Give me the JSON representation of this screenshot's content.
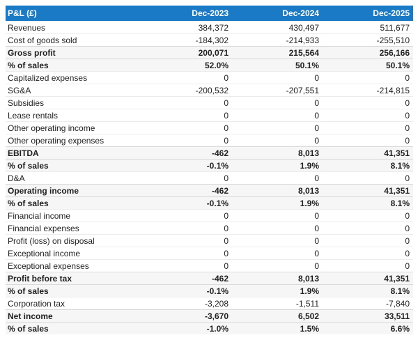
{
  "table": {
    "title": "P&L (£)",
    "columns": [
      "Dec-2023",
      "Dec-2024",
      "Dec-2025"
    ],
    "rows": [
      {
        "label": "Revenues",
        "values": [
          "384,372",
          "430,497",
          "511,677"
        ],
        "style": "normal"
      },
      {
        "label": "Cost of goods sold",
        "values": [
          "-184,302",
          "-214,933",
          "-255,510"
        ],
        "style": "normal"
      },
      {
        "label": "Gross profit",
        "values": [
          "200,071",
          "215,564",
          "256,166"
        ],
        "style": "section"
      },
      {
        "label": "% of sales",
        "values": [
          "52.0%",
          "50.1%",
          "50.1%"
        ],
        "style": "section"
      },
      {
        "label": "Capitalized expenses",
        "values": [
          "0",
          "0",
          "0"
        ],
        "style": "normal"
      },
      {
        "label": "SG&A",
        "values": [
          "-200,532",
          "-207,551",
          "-214,815"
        ],
        "style": "normal"
      },
      {
        "label": "Subsidies",
        "values": [
          "0",
          "0",
          "0"
        ],
        "style": "normal"
      },
      {
        "label": "Lease rentals",
        "values": [
          "0",
          "0",
          "0"
        ],
        "style": "normal"
      },
      {
        "label": "Other operating income",
        "values": [
          "0",
          "0",
          "0"
        ],
        "style": "normal"
      },
      {
        "label": "Other operating expenses",
        "values": [
          "0",
          "0",
          "0"
        ],
        "style": "normal"
      },
      {
        "label": "EBITDA",
        "values": [
          "-462",
          "8,013",
          "41,351"
        ],
        "style": "section"
      },
      {
        "label": "% of sales",
        "values": [
          "-0.1%",
          "1.9%",
          "8.1%"
        ],
        "style": "section"
      },
      {
        "label": "D&A",
        "values": [
          "0",
          "0",
          "0"
        ],
        "style": "normal"
      },
      {
        "label": "Operating income",
        "values": [
          "-462",
          "8,013",
          "41,351"
        ],
        "style": "section"
      },
      {
        "label": "% of sales",
        "values": [
          "-0.1%",
          "1.9%",
          "8.1%"
        ],
        "style": "section"
      },
      {
        "label": "Financial income",
        "values": [
          "0",
          "0",
          "0"
        ],
        "style": "normal"
      },
      {
        "label": "Financial expenses",
        "values": [
          "0",
          "0",
          "0"
        ],
        "style": "normal"
      },
      {
        "label": "Profit (loss) on disposal",
        "values": [
          "0",
          "0",
          "0"
        ],
        "style": "normal"
      },
      {
        "label": "Exceptional income",
        "values": [
          "0",
          "0",
          "0"
        ],
        "style": "normal"
      },
      {
        "label": "Exceptional expenses",
        "values": [
          "0",
          "0",
          "0"
        ],
        "style": "normal"
      },
      {
        "label": "Profit before tax",
        "values": [
          "-462",
          "8,013",
          "41,351"
        ],
        "style": "section"
      },
      {
        "label": "% of sales",
        "values": [
          "-0.1%",
          "1.9%",
          "8.1%"
        ],
        "style": "section"
      },
      {
        "label": "Corporation tax",
        "values": [
          "-3,208",
          "-1,511",
          "-7,840"
        ],
        "style": "normal"
      },
      {
        "label": "Net income",
        "values": [
          "-3,670",
          "6,502",
          "33,511"
        ],
        "style": "section"
      },
      {
        "label": "% of sales",
        "values": [
          "-1.0%",
          "1.5%",
          "6.6%"
        ],
        "style": "section"
      }
    ],
    "colors": {
      "header_bg": "#1b7ac5",
      "header_text": "#ffffff",
      "section_row_bg": "#f6f6f6",
      "row_border": "#ececec",
      "section_border": "#d9d9d9",
      "text": "#212121"
    }
  },
  "chart_data": {
    "type": "table",
    "title": "P&L (£)",
    "columns": [
      "P&L (£)",
      "Dec-2023",
      "Dec-2024",
      "Dec-2025"
    ],
    "rows": [
      [
        "Revenues",
        384372,
        430497,
        511677
      ],
      [
        "Cost of goods sold",
        -184302,
        -214933,
        -255510
      ],
      [
        "Gross profit",
        200071,
        215564,
        256166
      ],
      [
        "% of sales",
        "52.0%",
        "50.1%",
        "50.1%"
      ],
      [
        "Capitalized expenses",
        0,
        0,
        0
      ],
      [
        "SG&A",
        -200532,
        -207551,
        -214815
      ],
      [
        "Subsidies",
        0,
        0,
        0
      ],
      [
        "Lease rentals",
        0,
        0,
        0
      ],
      [
        "Other operating income",
        0,
        0,
        0
      ],
      [
        "Other operating expenses",
        0,
        0,
        0
      ],
      [
        "EBITDA",
        -462,
        8013,
        41351
      ],
      [
        "% of sales",
        "-0.1%",
        "1.9%",
        "8.1%"
      ],
      [
        "D&A",
        0,
        0,
        0
      ],
      [
        "Operating income",
        -462,
        8013,
        41351
      ],
      [
        "% of sales",
        "-0.1%",
        "1.9%",
        "8.1%"
      ],
      [
        "Financial income",
        0,
        0,
        0
      ],
      [
        "Financial expenses",
        0,
        0,
        0
      ],
      [
        "Profit (loss) on disposal",
        0,
        0,
        0
      ],
      [
        "Exceptional income",
        0,
        0,
        0
      ],
      [
        "Exceptional expenses",
        0,
        0,
        0
      ],
      [
        "Profit before tax",
        -462,
        8013,
        41351
      ],
      [
        "% of sales",
        "-0.1%",
        "1.9%",
        "8.1%"
      ],
      [
        "Corporation tax",
        -3208,
        -1511,
        -7840
      ],
      [
        "Net income",
        -3670,
        6502,
        33511
      ],
      [
        "% of sales",
        "-1.0%",
        "1.5%",
        "6.6%"
      ]
    ]
  }
}
